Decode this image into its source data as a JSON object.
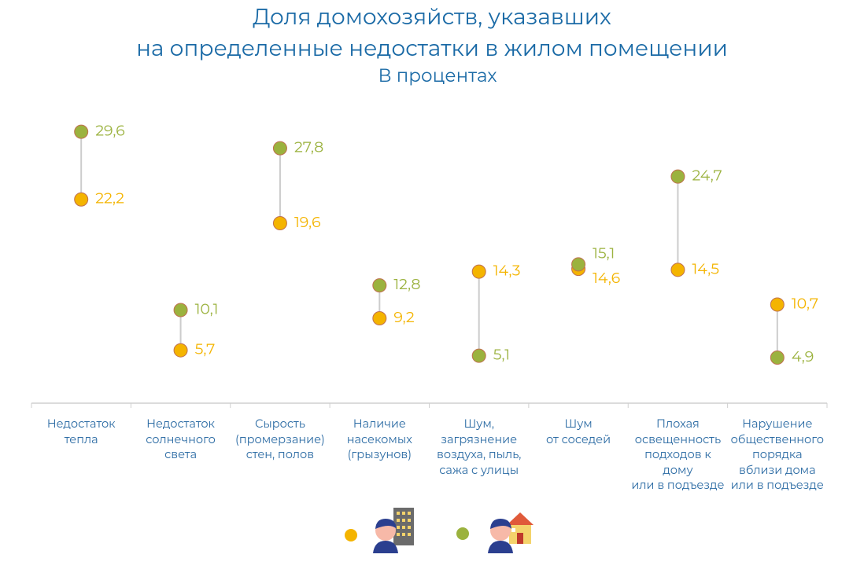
{
  "chart_data": {
    "type": "dumbbell",
    "title": "Доля домохозяйств, указавших\nна определенные недостатки в жилом помещении",
    "subtitle": "В процентах",
    "categories": [
      "Недостаток\nтепла",
      "Недостаток\nсолнечного\nсвета",
      "Сырость\n(промерзание)\nстен, полов",
      "Наличие\nнасекомых\n(грызунов)",
      "Шум,\nзагрязнение\nвоздуха, пыль,\nсажа с улицы",
      "Шум\nот соседей",
      "Плохая\nосвещенность\nподходов к дому\nили в подъезде",
      "Нарушение\nобщественного\nпорядка\nвблизи дома\nили в подъезде"
    ],
    "series": [
      {
        "color": "#f4b400",
        "values": [
          22.2,
          5.7,
          19.6,
          9.2,
          14.3,
          14.6,
          14.5,
          10.7
        ],
        "value_labels": [
          "22,2",
          "5,7",
          "19,6",
          "9,2",
          "14,3",
          "14,6",
          "14,5",
          "10,7"
        ]
      },
      {
        "color": "#9bb23e",
        "values": [
          29.6,
          10.1,
          27.8,
          12.8,
          5.1,
          15.1,
          24.7,
          4.9
        ],
        "value_labels": [
          "29,6",
          "10,1",
          "27,8",
          "12,8",
          "5,1",
          "15,1",
          "24,7",
          "4,9"
        ]
      }
    ],
    "ylim": [
      0,
      30
    ]
  }
}
